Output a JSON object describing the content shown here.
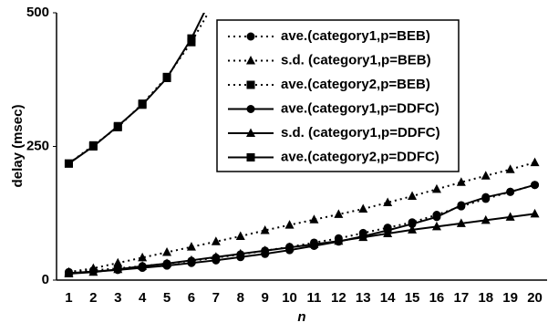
{
  "chart_data": {
    "type": "line",
    "x_label": "n",
    "y_label": "delay (msec)",
    "categories": [
      "1",
      "2",
      "3",
      "4",
      "5",
      "6",
      "7",
      "8",
      "9",
      "10",
      "11",
      "12",
      "13",
      "14",
      "15",
      "16",
      "17",
      "18",
      "19",
      "20"
    ],
    "ylim": [
      0,
      500
    ],
    "yticks": [
      0,
      250,
      500
    ],
    "series": [
      {
        "name": "ave.(category1,p=BEB)",
        "color": "#000000",
        "style": "dotted",
        "marker": "circle",
        "values": [
          15,
          18,
          22,
          26,
          31,
          36,
          42,
          48,
          55,
          62,
          70,
          78,
          88,
          98,
          108,
          122,
          138,
          152,
          165,
          178
        ]
      },
      {
        "name": "s.d. (category1,p=BEB)",
        "color": "#000000",
        "style": "dotted",
        "marker": "triangle",
        "values": [
          15,
          22,
          32,
          42,
          52,
          62,
          72,
          82,
          93,
          103,
          113,
          123,
          133,
          145,
          157,
          170,
          183,
          195,
          207,
          220
        ]
      },
      {
        "name": "ave.(category2,p=BEB)",
        "color": "#000000",
        "style": "dotted",
        "marker": "square",
        "values": [
          218,
          252,
          286,
          330,
          380,
          445,
          525,
          null,
          null,
          null,
          null,
          null,
          null,
          null,
          null,
          null,
          null,
          null,
          null,
          null
        ]
      },
      {
        "name": "ave.(category1,p=DDFC)",
        "color": "#000000",
        "style": "solid",
        "marker": "circle",
        "values": [
          13,
          16,
          19,
          23,
          27,
          32,
          37,
          43,
          49,
          56,
          64,
          72,
          82,
          93,
          105,
          118,
          140,
          155,
          165,
          178
        ]
      },
      {
        "name": "s.d. (category1,p=DDFC)",
        "color": "#000000",
        "style": "solid",
        "marker": "triangle",
        "values": [
          12,
          15,
          20,
          26,
          31,
          37,
          43,
          49,
          55,
          61,
          67,
          73,
          80,
          87,
          94,
          100,
          106,
          112,
          118,
          124
        ]
      },
      {
        "name": "ave.(category2,p=DDFC)",
        "color": "#000000",
        "style": "solid",
        "marker": "square",
        "values": [
          218,
          250,
          288,
          328,
          378,
          452,
          545,
          null,
          null,
          null,
          null,
          null,
          null,
          null,
          null,
          null,
          null,
          null,
          null,
          null
        ]
      }
    ]
  }
}
